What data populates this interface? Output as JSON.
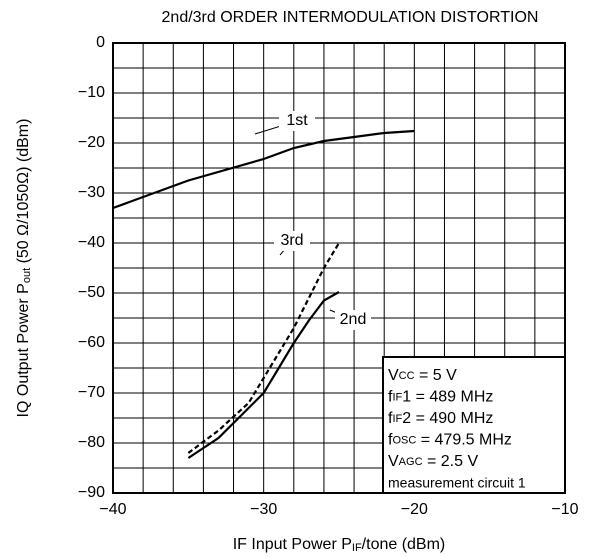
{
  "chart_data": {
    "type": "line",
    "title": "2nd/3rd ORDER INTERMODULATION DISTORTION",
    "x_label": [
      "IF Input Power P",
      "IF",
      "/tone (dBm)"
    ],
    "y_label": [
      "IQ Output Power P",
      "out",
      " (50 Ω/1050Ω) (dBm)"
    ],
    "xlim": [
      -40,
      -10
    ],
    "ylim": [
      -90,
      0
    ],
    "xticks": [
      {
        "value": -40,
        "label": "−40"
      },
      {
        "value": -30,
        "label": "−30"
      },
      {
        "value": -20,
        "label": "−20"
      },
      {
        "value": -10,
        "label": "−10"
      }
    ],
    "yticks": [
      0,
      {
        "value": -10,
        "label": "−10"
      },
      {
        "value": -20,
        "label": "−20"
      },
      {
        "value": -30,
        "label": "−30"
      },
      {
        "value": -40,
        "label": "−40"
      },
      {
        "value": -50,
        "label": "−50"
      },
      {
        "value": -60,
        "label": "−60"
      },
      {
        "value": -70,
        "label": "−70"
      },
      {
        "value": -80,
        "label": "−80"
      },
      {
        "value": -90,
        "label": "−90"
      }
    ],
    "grid": true,
    "x_grid": [
      -38,
      -36,
      -34,
      -32,
      -28,
      -26,
      -24,
      -22,
      -18,
      -16,
      -14,
      -12
    ],
    "y_grid": [
      -5,
      -15,
      -25,
      -35,
      -45,
      -55,
      -65,
      -75,
      -85
    ],
    "series": [
      {
        "name": "1st",
        "color": "#000000",
        "dash": false,
        "x": [
          -40,
          -35,
          -30,
          -28,
          -26,
          -24,
          -22,
          -20
        ],
        "values": [
          -33,
          -27.5,
          -23.2,
          -21,
          -19.6,
          -18.8,
          -18,
          -17.6
        ]
      },
      {
        "name": "3rd",
        "color": "#000000",
        "dash": true,
        "x": [
          -35,
          -33,
          -31,
          -30,
          -29,
          -28,
          -27,
          -26,
          -25
        ],
        "values": [
          -82,
          -77.5,
          -72,
          -67,
          -62,
          -57,
          -51,
          -45,
          -40
        ]
      },
      {
        "name": "2nd",
        "color": "#000000",
        "dash": false,
        "x": [
          -35,
          -33,
          -31,
          -30,
          -29,
          -28,
          -27,
          -26,
          -25
        ],
        "values": [
          -83,
          -79,
          -73,
          -70,
          -65,
          -60,
          -55.5,
          -51.5,
          -49.8
        ]
      }
    ],
    "conditions": [
      [
        "V",
        "CC",
        " = 5 V"
      ],
      [
        "f",
        "IF",
        "1 = 489 MHz"
      ],
      [
        "f",
        "IF",
        "2 = 490 MHz"
      ],
      [
        "f",
        "OSC",
        " = 479.5 MHz"
      ],
      [
        "V",
        "AGC",
        " = 2.5 V"
      ],
      [
        "measurement circuit 1"
      ]
    ]
  }
}
